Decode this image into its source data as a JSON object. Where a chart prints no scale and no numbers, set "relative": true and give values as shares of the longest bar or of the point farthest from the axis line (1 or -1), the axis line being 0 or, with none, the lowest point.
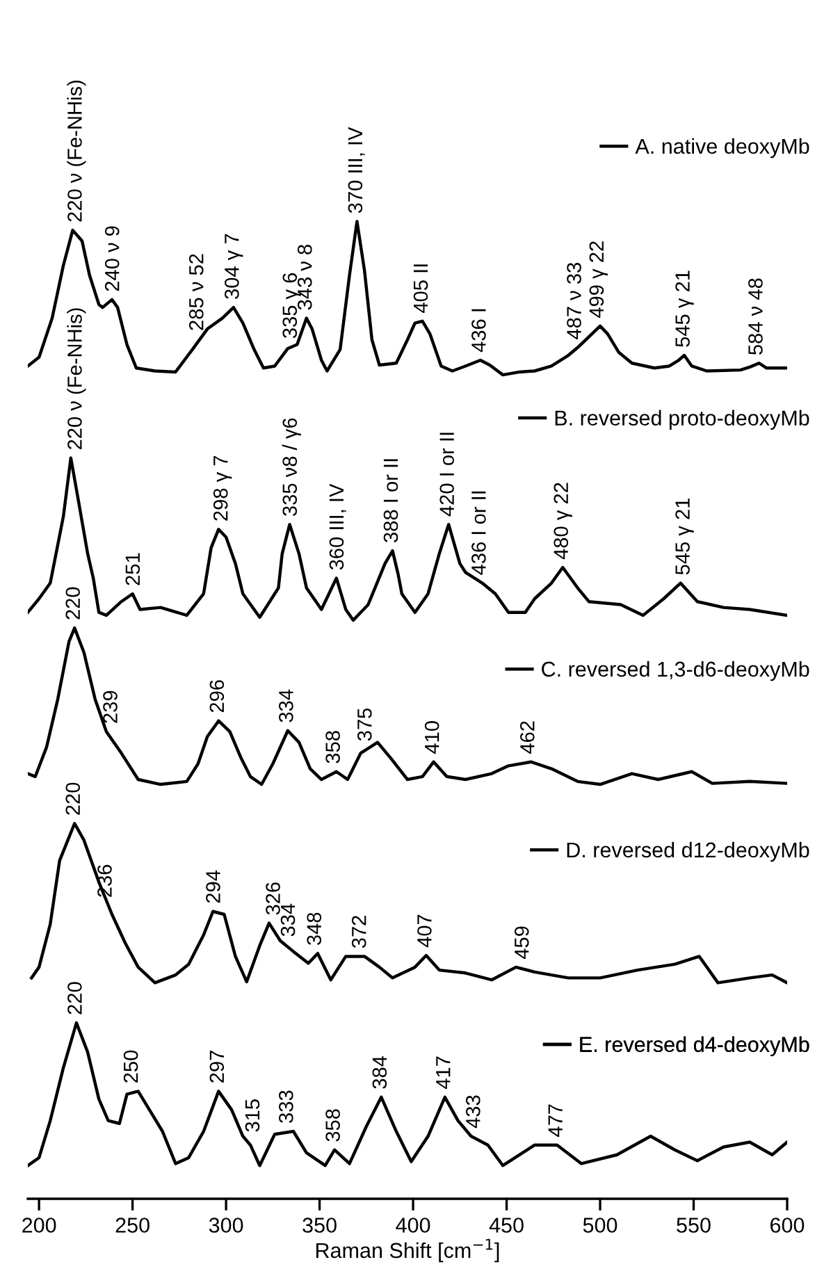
{
  "chart_data": {
    "type": "line",
    "relative": true,
    "legend": "right",
    "xlabel": "Raman Shift [cm$^{−1}$]",
    "xlim": [
      194,
      600
    ],
    "xticks": [
      200,
      250,
      300,
      350,
      400,
      450,
      500,
      550,
      600
    ],
    "series": [
      {
        "name": "A. native deoxyMb",
        "color": "#000000",
        "x": [
          194,
          200,
          207,
          213,
          218,
          223,
          227,
          232,
          234,
          239,
          242,
          247,
          252,
          262,
          273,
          282,
          290,
          298,
          304,
          309,
          315,
          320,
          326,
          333,
          338,
          343,
          346,
          351,
          354,
          361,
          366,
          370,
          374,
          378,
          382,
          391,
          397,
          401,
          405,
          409,
          415,
          421,
          428,
          436,
          441,
          448,
          457,
          465,
          474,
          483,
          488,
          494,
          500,
          504,
          510,
          517,
          529,
          537,
          542,
          545,
          549,
          557,
          575,
          580,
          585,
          589,
          600
        ],
        "values": [
          0.852,
          0.861,
          0.901,
          0.955,
          0.991,
          0.98,
          0.945,
          0.915,
          0.912,
          0.92,
          0.912,
          0.874,
          0.85,
          0.847,
          0.846,
          0.869,
          0.89,
          0.901,
          0.912,
          0.896,
          0.869,
          0.85,
          0.852,
          0.87,
          0.874,
          0.901,
          0.89,
          0.858,
          0.847,
          0.869,
          0.945,
          1.0,
          0.95,
          0.879,
          0.853,
          0.855,
          0.879,
          0.896,
          0.898,
          0.885,
          0.852,
          0.847,
          0.852,
          0.858,
          0.853,
          0.843,
          0.846,
          0.847,
          0.852,
          0.863,
          0.871,
          0.882,
          0.893,
          0.885,
          0.866,
          0.855,
          0.85,
          0.852,
          0.858,
          0.863,
          0.852,
          0.847,
          0.848,
          0.851,
          0.855,
          0.85,
          0.85
        ]
      },
      {
        "name": "B. reversed proto-deoxyMb",
        "color": "#000000",
        "x": [
          194,
          200,
          206,
          213,
          217,
          221,
          226,
          229,
          232,
          236,
          244,
          250,
          254,
          265,
          279,
          288,
          292,
          296,
          300,
          305,
          309,
          318,
          328,
          330,
          334,
          339,
          343,
          351,
          359,
          364,
          368,
          376,
          385,
          389,
          392,
          394,
          401,
          408,
          414,
          419,
          425,
          428,
          437,
          444,
          451,
          460,
          465,
          474,
          480,
          488,
          494,
          511,
          523,
          534,
          543,
          552,
          566,
          580,
          600
        ],
        "values": [
          0.6,
          0.614,
          0.63,
          0.698,
          0.758,
          0.715,
          0.66,
          0.635,
          0.6,
          0.597,
          0.611,
          0.619,
          0.603,
          0.605,
          0.597,
          0.619,
          0.666,
          0.685,
          0.677,
          0.65,
          0.619,
          0.595,
          0.625,
          0.66,
          0.69,
          0.66,
          0.625,
          0.603,
          0.635,
          0.603,
          0.592,
          0.608,
          0.65,
          0.663,
          0.639,
          0.619,
          0.6,
          0.619,
          0.66,
          0.69,
          0.65,
          0.641,
          0.63,
          0.619,
          0.6,
          0.6,
          0.614,
          0.63,
          0.646,
          0.625,
          0.611,
          0.608,
          0.597,
          0.614,
          0.63,
          0.611,
          0.605,
          0.603,
          0.597
        ]
      },
      {
        "name": "C. reversed 1,3-d6-deoxyMb",
        "color": "#000000",
        "x": [
          194,
          198,
          204,
          210,
          216,
          219,
          224,
          230,
          236,
          244,
          253,
          265,
          279,
          285,
          290,
          296,
          302,
          308,
          313,
          319,
          325,
          333,
          339,
          345,
          351,
          359,
          365,
          372,
          381,
          388,
          397,
          405,
          411,
          418,
          428,
          442,
          451,
          463,
          474,
          488,
          500,
          517,
          531,
          549,
          560,
          580,
          600
        ],
        "values": [
          0.435,
          0.432,
          0.462,
          0.511,
          0.57,
          0.584,
          0.559,
          0.511,
          0.478,
          0.456,
          0.429,
          0.424,
          0.427,
          0.445,
          0.473,
          0.489,
          0.478,
          0.451,
          0.432,
          0.424,
          0.445,
          0.479,
          0.467,
          0.44,
          0.429,
          0.437,
          0.429,
          0.456,
          0.467,
          0.451,
          0.429,
          0.432,
          0.447,
          0.432,
          0.429,
          0.435,
          0.443,
          0.447,
          0.44,
          0.427,
          0.424,
          0.435,
          0.429,
          0.437,
          0.425,
          0.427,
          0.425
        ]
      },
      {
        "name": "D. reversed d12-deoxyMb",
        "color": "#000000",
        "x": [
          196,
          200,
          206,
          211,
          219,
          224,
          232,
          239,
          246,
          253,
          262,
          273,
          280,
          288,
          293,
          299,
          305,
          311,
          318,
          323,
          329,
          336,
          344,
          349,
          356,
          364,
          374,
          382,
          389,
          401,
          407,
          414,
          428,
          442,
          455,
          465,
          483,
          500,
          520,
          540,
          553,
          563,
          580,
          592,
          600
        ],
        "values": [
          0.226,
          0.237,
          0.281,
          0.346,
          0.384,
          0.367,
          0.324,
          0.291,
          0.262,
          0.237,
          0.221,
          0.229,
          0.24,
          0.27,
          0.294,
          0.291,
          0.248,
          0.222,
          0.259,
          0.282,
          0.264,
          0.253,
          0.241,
          0.251,
          0.224,
          0.248,
          0.248,
          0.237,
          0.226,
          0.237,
          0.249,
          0.234,
          0.231,
          0.224,
          0.237,
          0.232,
          0.226,
          0.226,
          0.234,
          0.24,
          0.248,
          0.221,
          0.226,
          0.229,
          0.221
        ]
      },
      {
        "name": "E. reversed d4-deoxyMb",
        "color": "#000000",
        "x": [
          194,
          200,
          206,
          213,
          220,
          226,
          232,
          237,
          243,
          247,
          253,
          260,
          266,
          273,
          280,
          288,
          296,
          303,
          309,
          313,
          318,
          326,
          336,
          343,
          353,
          358,
          366,
          375,
          383,
          391,
          399,
          408,
          417,
          424,
          431,
          440,
          448,
          465,
          477,
          490,
          509,
          527,
          540,
          552,
          566,
          580,
          592,
          600
        ],
        "values": [
          0.034,
          0.042,
          0.08,
          0.134,
          0.18,
          0.15,
          0.102,
          0.08,
          0.077,
          0.107,
          0.11,
          0.088,
          0.069,
          0.036,
          0.042,
          0.069,
          0.11,
          0.091,
          0.064,
          0.055,
          0.034,
          0.066,
          0.069,
          0.047,
          0.034,
          0.05,
          0.036,
          0.074,
          0.104,
          0.069,
          0.038,
          0.064,
          0.104,
          0.08,
          0.064,
          0.055,
          0.034,
          0.055,
          0.055,
          0.036,
          0.045,
          0.064,
          0.05,
          0.039,
          0.053,
          0.058,
          0.045,
          0.058
        ]
      }
    ],
    "annotations": [
      {
        "text": "220 ν (Fe-NHis)",
        "x": 220,
        "y": 0.991
      },
      {
        "text": "240 ν 9",
        "x": 240,
        "y": 0.92
      },
      {
        "text": "285 ν 52",
        "x": 285,
        "y": 0.88
      },
      {
        "text": "304 γ 7",
        "x": 304,
        "y": 0.912
      },
      {
        "text": "335 γ 6",
        "x": 335,
        "y": 0.872
      },
      {
        "text": "343 ν 8",
        "x": 343,
        "y": 0.901
      },
      {
        "text": "370 III, IV",
        "x": 370,
        "y": 1.0
      },
      {
        "text": "405 II",
        "x": 405,
        "y": 0.898
      },
      {
        "text": "436 I",
        "x": 436,
        "y": 0.858
      },
      {
        "text": "487 ν 33",
        "x": 487,
        "y": 0.871
      },
      {
        "text": "499 γ 22",
        "x": 499,
        "y": 0.893
      },
      {
        "text": "545 γ 21",
        "x": 545,
        "y": 0.863
      },
      {
        "text": "584 ν 48",
        "x": 584,
        "y": 0.855
      },
      {
        "text": "220 ν (Fe-NHis)",
        "x": 220,
        "y": 0.758
      },
      {
        "text": "251",
        "x": 251,
        "y": 0.619
      },
      {
        "text": "298 γ 7",
        "x": 298,
        "y": 0.685
      },
      {
        "text": "335 ν8 / γ6",
        "x": 335,
        "y": 0.69
      },
      {
        "text": "360 III, IV",
        "x": 360,
        "y": 0.635
      },
      {
        "text": "388 I or II",
        "x": 389,
        "y": 0.663
      },
      {
        "text": "420 I or II",
        "x": 419,
        "y": 0.69
      },
      {
        "text": "436 I or II",
        "x": 436,
        "y": 0.63
      },
      {
        "text": "480 γ 22",
        "x": 480,
        "y": 0.646
      },
      {
        "text": "545 γ 21",
        "x": 545,
        "y": 0.63
      },
      {
        "text": "220",
        "x": 219,
        "y": 0.584
      },
      {
        "text": "239",
        "x": 239,
        "y": 0.478
      },
      {
        "text": "296",
        "x": 296,
        "y": 0.489
      },
      {
        "text": "334",
        "x": 333,
        "y": 0.479
      },
      {
        "text": "358",
        "x": 358,
        "y": 0.437
      },
      {
        "text": "375",
        "x": 375,
        "y": 0.46
      },
      {
        "text": "410",
        "x": 411,
        "y": 0.447
      },
      {
        "text": "462",
        "x": 462,
        "y": 0.447
      },
      {
        "text": "220",
        "x": 219,
        "y": 0.384
      },
      {
        "text": "236",
        "x": 236,
        "y": 0.3
      },
      {
        "text": "294",
        "x": 294,
        "y": 0.294
      },
      {
        "text": "326",
        "x": 326,
        "y": 0.282
      },
      {
        "text": "334",
        "x": 334,
        "y": 0.26
      },
      {
        "text": "348",
        "x": 348,
        "y": 0.251
      },
      {
        "text": "372",
        "x": 372,
        "y": 0.248
      },
      {
        "text": "407",
        "x": 407,
        "y": 0.249
      },
      {
        "text": "459",
        "x": 459,
        "y": 0.237
      },
      {
        "text": "220",
        "x": 220,
        "y": 0.18
      },
      {
        "text": "250",
        "x": 250,
        "y": 0.11
      },
      {
        "text": "297",
        "x": 296,
        "y": 0.11
      },
      {
        "text": "315",
        "x": 315,
        "y": 0.06
      },
      {
        "text": "333",
        "x": 333,
        "y": 0.069
      },
      {
        "text": "358",
        "x": 358,
        "y": 0.05
      },
      {
        "text": "384",
        "x": 383,
        "y": 0.104
      },
      {
        "text": "417",
        "x": 417,
        "y": 0.104
      },
      {
        "text": "433",
        "x": 433,
        "y": 0.064
      },
      {
        "text": "477",
        "x": 477,
        "y": 0.055
      }
    ]
  }
}
